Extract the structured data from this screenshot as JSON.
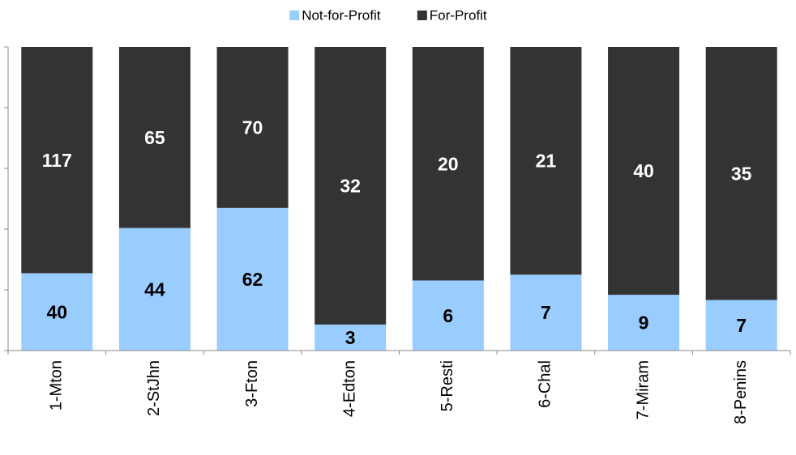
{
  "chart_data": {
    "type": "bar",
    "stacking": "percent",
    "categories": [
      "1-Mton",
      "2-StJhn",
      "3-Fton",
      "4-Edton",
      "5-Resti",
      "6-Chal",
      "7-Miram",
      "8-Penins"
    ],
    "series": [
      {
        "name": "Not-for-Profit",
        "color": "#99ccff",
        "values": [
          40,
          44,
          62,
          3,
          6,
          7,
          9,
          7
        ]
      },
      {
        "name": "For-Profit",
        "color": "#333333",
        "values": [
          117,
          65,
          70,
          32,
          20,
          21,
          40,
          35
        ]
      }
    ],
    "ylim": [
      0,
      100
    ],
    "yticks": [
      0,
      20,
      40,
      60,
      80,
      100
    ],
    "legend": "top"
  }
}
